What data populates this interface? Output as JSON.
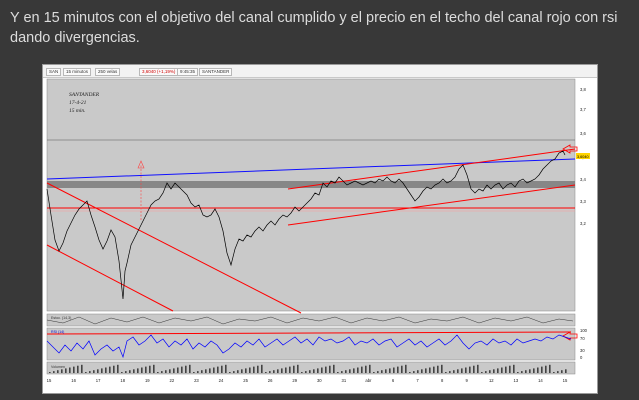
{
  "caption": "Y en 15 minutos con el objetivo del canal cumplido y el precio en el techo del canal rojo con rsi dando divergencias.",
  "toolbar": {
    "symbol": "SAN",
    "interval": "15 minutos",
    "period": "250 velas",
    "price_info": "3,6040 (+1,19%)",
    "extra": "9:45:35",
    "name": "SANTANDER"
  },
  "annotation": {
    "name": "SANTANDER",
    "date": "17-4-21",
    "interval": "15 min."
  },
  "price_axis": {
    "ticks": [
      "3,8",
      "3,7",
      "3,6",
      "3,5",
      "3,4",
      "3,3",
      "3,2"
    ],
    "last_price": "3,6040"
  },
  "rsi_axis": {
    "ticks": [
      "100",
      "70",
      "30",
      "0"
    ]
  },
  "date_axis": {
    "labels": [
      "15",
      "16",
      "17",
      "18",
      "19",
      "22",
      "23",
      "24",
      "25",
      "26",
      "29",
      "30",
      "31",
      "abr",
      "6",
      "7",
      "8",
      "9",
      "12",
      "13",
      "14",
      "15"
    ]
  },
  "panels": {
    "stoch_label": "Estoc. (14,3)",
    "rsi_label": "RSI (14)",
    "volume_label": "Volumen"
  },
  "colors": {
    "channel_red": "#ff0000",
    "trend_blue": "#1010ff",
    "price_line": "#000000",
    "support_band": "#808080",
    "rsi_line": "#0000ff",
    "panel_bg": "#c9c9c9"
  }
}
